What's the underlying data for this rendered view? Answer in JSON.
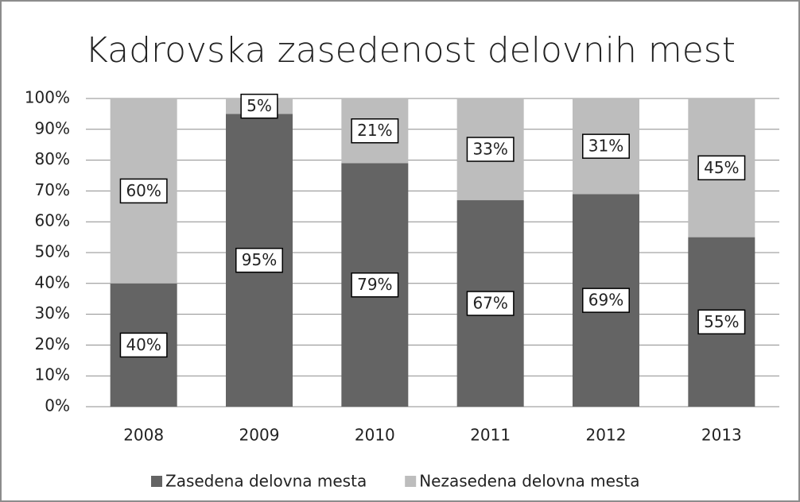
{
  "chart_data": {
    "type": "stacked_bar",
    "title": "Kadrovska zasedenost delovnih mest",
    "categories": [
      "2008",
      "2009",
      "2010",
      "2011",
      "2012",
      "2013"
    ],
    "series": [
      {
        "name": "Zasedena delovna mesta",
        "color": "#646464",
        "values": [
          40,
          95,
          79,
          67,
          69,
          55
        ],
        "value_labels": [
          "40%",
          "95%",
          "79%",
          "67%",
          "69%",
          "55%"
        ]
      },
      {
        "name": "Nezasedena delovna mesta",
        "color": "#bdbdbd",
        "values": [
          60,
          5,
          21,
          33,
          31,
          45
        ],
        "value_labels": [
          "60%",
          "5%",
          "21%",
          "33%",
          "31%",
          "45%"
        ]
      }
    ],
    "ylim": [
      0,
      100
    ],
    "yticks": [
      {
        "value": 0,
        "label": "0%"
      },
      {
        "value": 10,
        "label": "10%"
      },
      {
        "value": 20,
        "label": "20%"
      },
      {
        "value": 30,
        "label": "30%"
      },
      {
        "value": 40,
        "label": "40%"
      },
      {
        "value": 50,
        "label": "50%"
      },
      {
        "value": 60,
        "label": "60%"
      },
      {
        "value": 70,
        "label": "70%"
      },
      {
        "value": 80,
        "label": "80%"
      },
      {
        "value": 90,
        "label": "90%"
      },
      {
        "value": 100,
        "label": "100%"
      }
    ],
    "grid": true,
    "legend": "bottom"
  }
}
